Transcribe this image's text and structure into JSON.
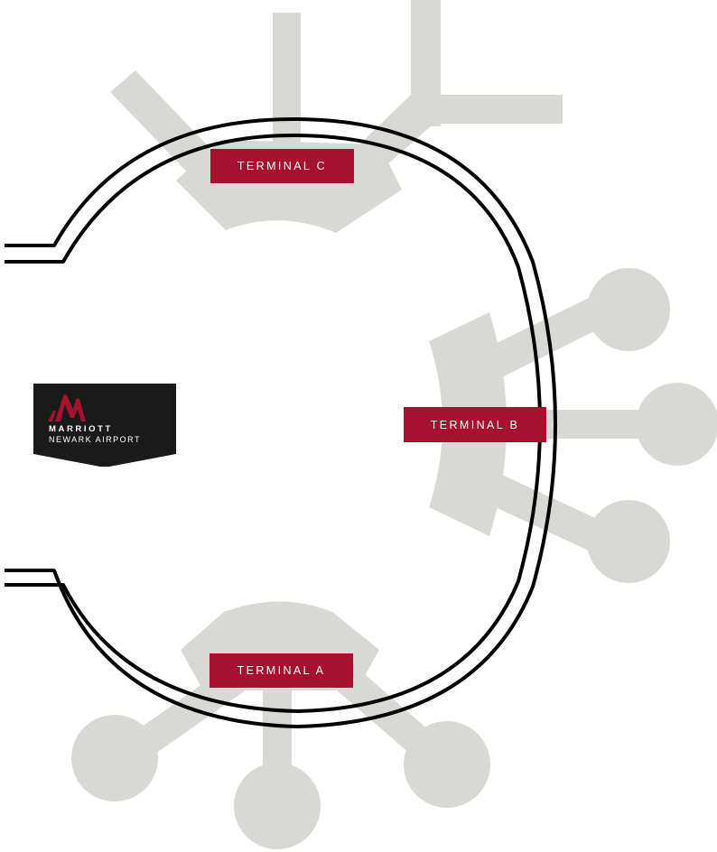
{
  "colors": {
    "terminal_fill": "#d8d8d5",
    "road": "#000000",
    "label_background": "#a6112e",
    "label_text": "#ffffff",
    "hotel_marker_background": "#1a1a1a",
    "hotel_logo": "#a6112e"
  },
  "terminals": [
    {
      "id": "c",
      "label": "TERMINAL C"
    },
    {
      "id": "b",
      "label": "TERMINAL B"
    },
    {
      "id": "a",
      "label": "TERMINAL A"
    }
  ],
  "hotel": {
    "name": "MARRIOTT",
    "location": "NEWARK AIRPORT",
    "logo_icon": "marriott-m-logo-icon"
  }
}
